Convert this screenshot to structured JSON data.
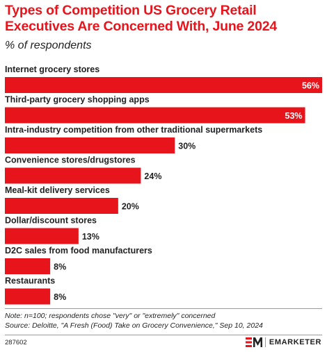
{
  "title": "Types of Competition US Grocery Retail Executives Are Concerned With, June 2024",
  "subtitle": "% of respondents",
  "colors": {
    "accent": "#e8141c",
    "text": "#222222",
    "label_inside": "#ffffff"
  },
  "chart_data": {
    "type": "bar",
    "orientation": "horizontal",
    "title": "Types of Competition US Grocery Retail Executives Are Concerned With, June 2024",
    "subtitle": "% of respondents",
    "categories": [
      "Internet grocery stores",
      "Third-party grocery shopping apps",
      "Intra-industry competition from other traditional supermarkets",
      "Convenience stores/drugstores",
      "Meal-kit delivery services",
      "Dollar/discount stores",
      "D2C sales from food manufacturers",
      "Restaurants"
    ],
    "values": [
      56,
      53,
      30,
      24,
      20,
      13,
      8,
      8
    ],
    "value_labels": [
      "56%",
      "53%",
      "30%",
      "24%",
      "20%",
      "13%",
      "8%",
      "8%"
    ],
    "xlim": [
      0,
      56
    ],
    "grid": false,
    "legend": "none"
  },
  "notes": {
    "note": "Note: n=100; respondents chose \"very\" or \"extremely\" concerned",
    "source": "Source: Deloitte, \"A Fresh (Food) Take on Grocery Convenience,\" Sep 10, 2024"
  },
  "chart_id": "287602",
  "brand": {
    "logo_icon": "em-logo-icon",
    "name": "EMARKETER"
  }
}
